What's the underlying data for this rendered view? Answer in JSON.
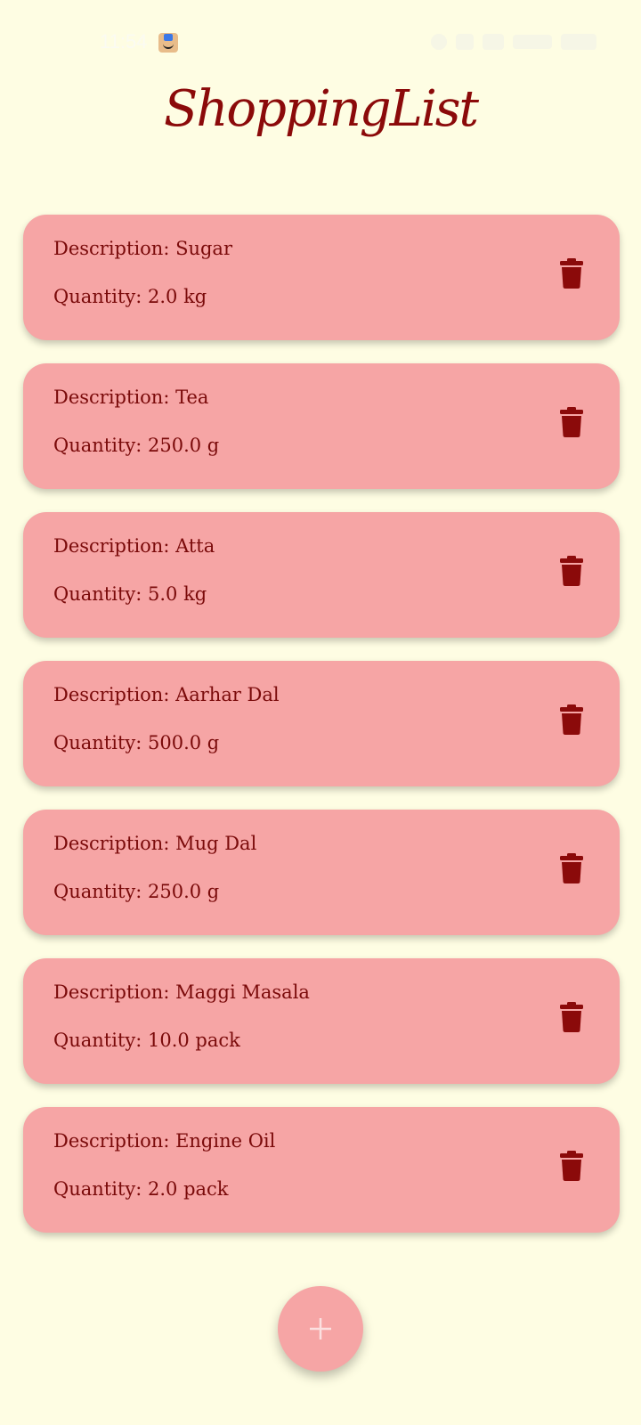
{
  "app": {
    "title": "ShoppingList"
  },
  "status_bar": {
    "time": "11:54"
  },
  "items": [
    {
      "description": "Description: Sugar",
      "quantity": "Quantity: 2.0 kg"
    },
    {
      "description": "Description: Tea",
      "quantity": "Quantity: 250.0 g"
    },
    {
      "description": "Description: Atta",
      "quantity": "Quantity: 5.0 kg"
    },
    {
      "description": "Description: Aarhar Dal",
      "quantity": "Quantity: 500.0 g"
    },
    {
      "description": "Description: Mug Dal",
      "quantity": "Quantity: 250.0 g"
    },
    {
      "description": "Description: Maggi Masala",
      "quantity": "Quantity: 10.0 pack"
    },
    {
      "description": "Description: Engine Oil",
      "quantity": "Quantity: 2.0 pack"
    }
  ],
  "icons": {
    "delete": "trash-icon",
    "add": "plus-icon"
  },
  "colors": {
    "background": "#FEFDE3",
    "card": "#F6A5A5",
    "accent": "#8B0A0A"
  }
}
